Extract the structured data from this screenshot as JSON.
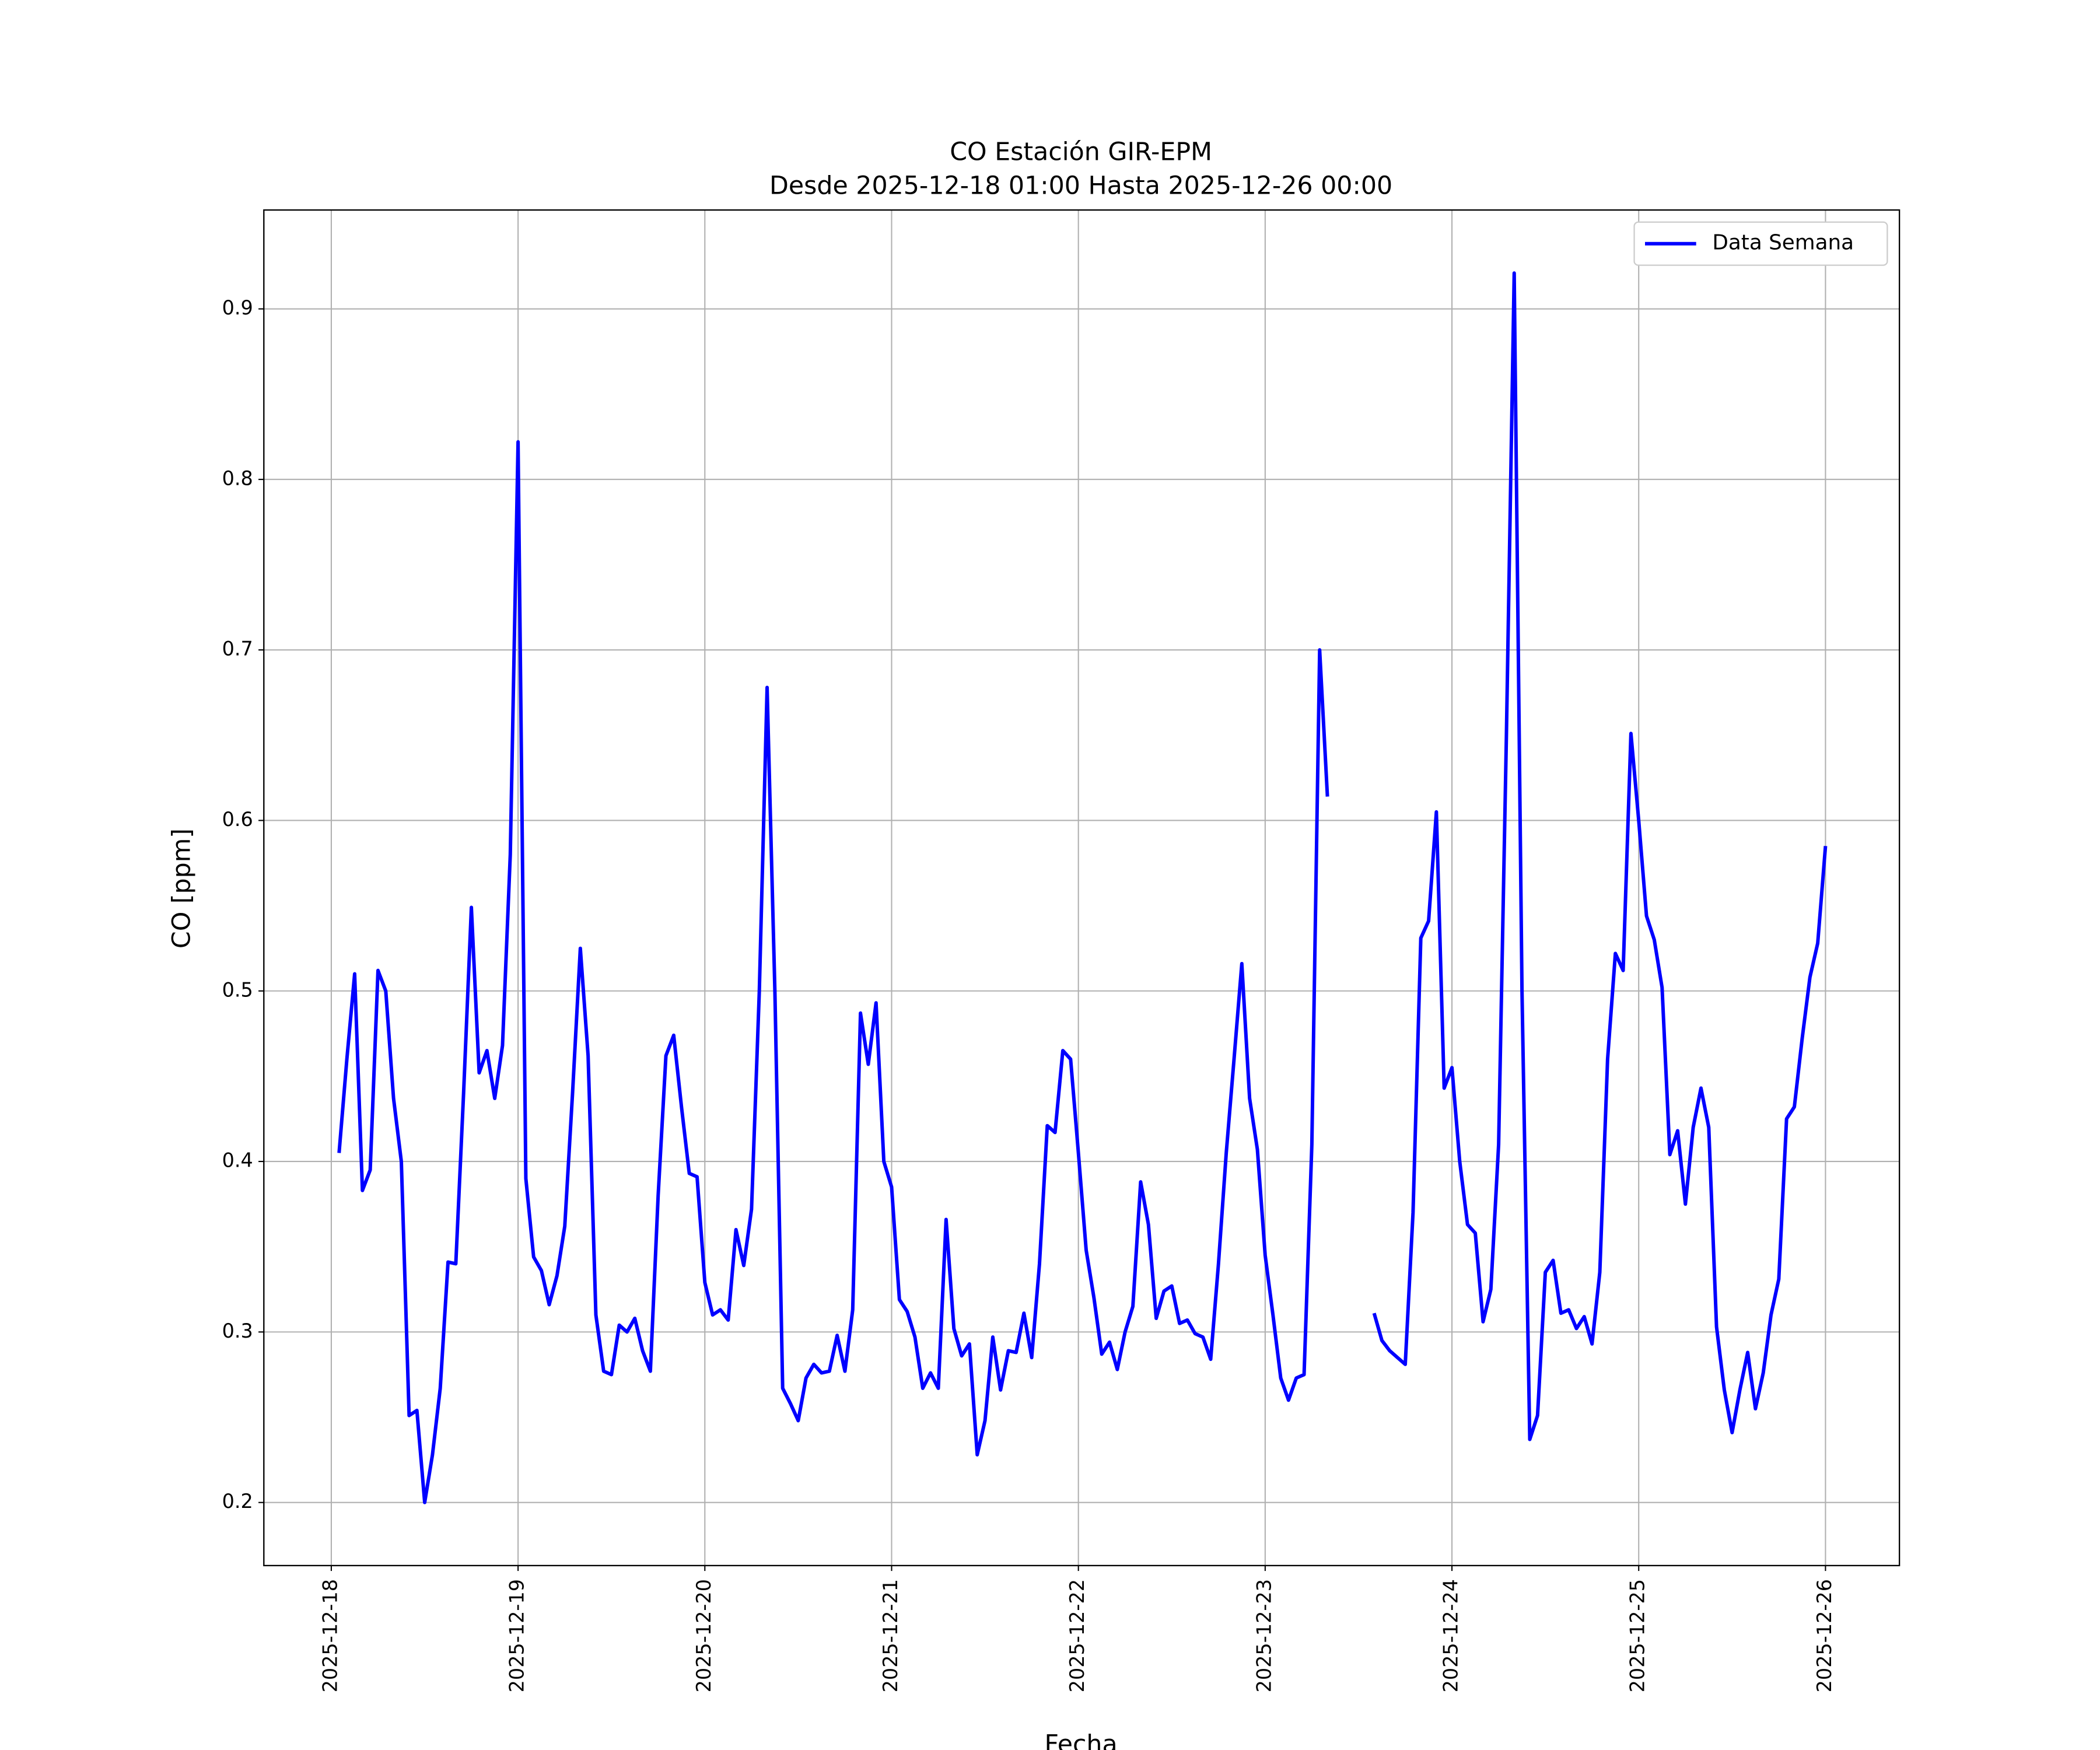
{
  "chart_data": {
    "type": "line",
    "title": "CO Estación GIR-EPM",
    "subtitle": "Desde 2025-12-18 01:00 Hasta 2025-12-26 00:00",
    "x_label": "Fecha",
    "y_label": "CO [ppm]",
    "x": [
      "2025-12-18 01:00",
      "2025-12-18 02:00",
      "2025-12-18 03:00",
      "2025-12-18 04:00",
      "2025-12-18 05:00",
      "2025-12-18 06:00",
      "2025-12-18 07:00",
      "2025-12-18 08:00",
      "2025-12-18 09:00",
      "2025-12-18 10:00",
      "2025-12-18 11:00",
      "2025-12-18 12:00",
      "2025-12-18 13:00",
      "2025-12-18 14:00",
      "2025-12-18 15:00",
      "2025-12-18 16:00",
      "2025-12-18 17:00",
      "2025-12-18 18:00",
      "2025-12-18 19:00",
      "2025-12-18 20:00",
      "2025-12-18 21:00",
      "2025-12-18 22:00",
      "2025-12-18 23:00",
      "2025-12-19 00:00",
      "2025-12-19 01:00",
      "2025-12-19 02:00",
      "2025-12-19 03:00",
      "2025-12-19 04:00",
      "2025-12-19 05:00",
      "2025-12-19 06:00",
      "2025-12-19 07:00",
      "2025-12-19 08:00",
      "2025-12-19 09:00",
      "2025-12-19 10:00",
      "2025-12-19 11:00",
      "2025-12-19 12:00",
      "2025-12-19 13:00",
      "2025-12-19 14:00",
      "2025-12-19 15:00",
      "2025-12-19 16:00",
      "2025-12-19 17:00",
      "2025-12-19 18:00",
      "2025-12-19 19:00",
      "2025-12-19 20:00",
      "2025-12-19 21:00",
      "2025-12-19 22:00",
      "2025-12-19 23:00",
      "2025-12-20 00:00",
      "2025-12-20 01:00",
      "2025-12-20 02:00",
      "2025-12-20 03:00",
      "2025-12-20 04:00",
      "2025-12-20 05:00",
      "2025-12-20 06:00",
      "2025-12-20 07:00",
      "2025-12-20 08:00",
      "2025-12-20 09:00",
      "2025-12-20 10:00",
      "2025-12-20 11:00",
      "2025-12-20 12:00",
      "2025-12-20 13:00",
      "2025-12-20 14:00",
      "2025-12-20 15:00",
      "2025-12-20 16:00",
      "2025-12-20 17:00",
      "2025-12-20 18:00",
      "2025-12-20 19:00",
      "2025-12-20 20:00",
      "2025-12-20 21:00",
      "2025-12-20 22:00",
      "2025-12-20 23:00",
      "2025-12-21 00:00",
      "2025-12-21 01:00",
      "2025-12-21 02:00",
      "2025-12-21 03:00",
      "2025-12-21 04:00",
      "2025-12-21 05:00",
      "2025-12-21 06:00",
      "2025-12-21 07:00",
      "2025-12-21 08:00",
      "2025-12-21 09:00",
      "2025-12-21 10:00",
      "2025-12-21 11:00",
      "2025-12-21 12:00",
      "2025-12-21 13:00",
      "2025-12-21 14:00",
      "2025-12-21 15:00",
      "2025-12-21 16:00",
      "2025-12-21 17:00",
      "2025-12-21 18:00",
      "2025-12-21 19:00",
      "2025-12-21 20:00",
      "2025-12-21 21:00",
      "2025-12-21 22:00",
      "2025-12-21 23:00",
      "2025-12-22 00:00",
      "2025-12-22 01:00",
      "2025-12-22 02:00",
      "2025-12-22 03:00",
      "2025-12-22 04:00",
      "2025-12-22 05:00",
      "2025-12-22 06:00",
      "2025-12-22 07:00",
      "2025-12-22 08:00",
      "2025-12-22 09:00",
      "2025-12-22 10:00",
      "2025-12-22 11:00",
      "2025-12-22 12:00",
      "2025-12-22 13:00",
      "2025-12-22 14:00",
      "2025-12-22 15:00",
      "2025-12-22 16:00",
      "2025-12-22 17:00",
      "2025-12-22 18:00",
      "2025-12-22 19:00",
      "2025-12-22 20:00",
      "2025-12-22 21:00",
      "2025-12-22 22:00",
      "2025-12-22 23:00",
      "2025-12-23 00:00",
      "2025-12-23 01:00",
      "2025-12-23 02:00",
      "2025-12-23 03:00",
      "2025-12-23 04:00",
      "2025-12-23 05:00",
      "2025-12-23 06:00",
      "2025-12-23 07:00",
      "2025-12-23 08:00",
      "2025-12-23 09:00",
      "2025-12-23 10:00",
      "2025-12-23 11:00",
      "2025-12-23 12:00",
      "2025-12-23 13:00",
      "2025-12-23 14:00",
      "2025-12-23 15:00",
      "2025-12-23 16:00",
      "2025-12-23 17:00",
      "2025-12-23 18:00",
      "2025-12-23 19:00",
      "2025-12-23 20:00",
      "2025-12-23 21:00",
      "2025-12-23 22:00",
      "2025-12-23 23:00",
      "2025-12-24 00:00",
      "2025-12-24 01:00",
      "2025-12-24 02:00",
      "2025-12-24 03:00",
      "2025-12-24 04:00",
      "2025-12-24 05:00",
      "2025-12-24 06:00",
      "2025-12-24 07:00",
      "2025-12-24 08:00",
      "2025-12-24 09:00",
      "2025-12-24 10:00",
      "2025-12-24 11:00",
      "2025-12-24 12:00",
      "2025-12-24 13:00",
      "2025-12-24 14:00",
      "2025-12-24 15:00",
      "2025-12-24 16:00",
      "2025-12-24 17:00",
      "2025-12-24 18:00",
      "2025-12-24 19:00",
      "2025-12-24 20:00",
      "2025-12-24 21:00",
      "2025-12-24 22:00",
      "2025-12-24 23:00",
      "2025-12-25 00:00",
      "2025-12-25 01:00",
      "2025-12-25 02:00",
      "2025-12-25 03:00",
      "2025-12-25 04:00",
      "2025-12-25 05:00",
      "2025-12-25 06:00",
      "2025-12-25 07:00",
      "2025-12-25 08:00",
      "2025-12-25 09:00",
      "2025-12-25 10:00",
      "2025-12-25 11:00",
      "2025-12-25 12:00",
      "2025-12-25 13:00",
      "2025-12-25 14:00",
      "2025-12-25 15:00",
      "2025-12-25 16:00",
      "2025-12-25 17:00",
      "2025-12-25 18:00",
      "2025-12-25 19:00",
      "2025-12-25 20:00",
      "2025-12-25 21:00",
      "2025-12-25 22:00",
      "2025-12-25 23:00",
      "2025-12-26 00:00"
    ],
    "series": [
      {
        "name": "Data Semana",
        "color": "#0000ff",
        "values": [
          0.405,
          0.46,
          0.51,
          0.383,
          0.395,
          0.512,
          0.5,
          0.437,
          0.4,
          0.251,
          0.254,
          0.2,
          0.228,
          0.267,
          0.341,
          0.34,
          0.44,
          0.549,
          0.452,
          0.465,
          0.437,
          0.468,
          0.58,
          0.822,
          0.39,
          0.344,
          0.336,
          0.316,
          0.333,
          0.362,
          0.44,
          0.525,
          0.462,
          0.31,
          0.277,
          0.275,
          0.304,
          0.3,
          0.308,
          0.289,
          0.277,
          0.38,
          0.462,
          0.474,
          0.432,
          0.393,
          0.391,
          0.329,
          0.31,
          0.313,
          0.307,
          0.36,
          0.339,
          0.372,
          0.5,
          0.678,
          0.5,
          0.267,
          0.258,
          0.248,
          0.273,
          0.281,
          0.276,
          0.277,
          0.298,
          0.277,
          0.313,
          0.487,
          0.457,
          0.493,
          0.4,
          0.385,
          0.319,
          0.312,
          0.297,
          0.267,
          0.276,
          0.267,
          0.366,
          0.302,
          0.286,
          0.293,
          0.228,
          0.248,
          0.297,
          0.266,
          0.289,
          0.288,
          0.311,
          0.285,
          0.34,
          0.421,
          0.417,
          0.465,
          0.46,
          0.405,
          0.348,
          0.32,
          0.287,
          0.294,
          0.278,
          0.3,
          0.315,
          0.388,
          0.363,
          0.308,
          0.324,
          0.327,
          0.305,
          0.307,
          0.299,
          0.297,
          0.284,
          0.34,
          0.405,
          0.46,
          0.516,
          0.437,
          0.407,
          0.345,
          0.31,
          0.273,
          0.26,
          0.273,
          0.275,
          0.41,
          0.7,
          0.614,
          null,
          null,
          null,
          null,
          null,
          0.311,
          0.295,
          0.289,
          0.285,
          0.281,
          0.37,
          0.531,
          0.541,
          0.605,
          0.443,
          0.455,
          0.4,
          0.363,
          0.358,
          0.306,
          0.325,
          0.41,
          0.65,
          0.921,
          0.5,
          0.237,
          0.251,
          0.335,
          0.342,
          0.311,
          0.313,
          0.302,
          0.309,
          0.293,
          0.335,
          0.46,
          0.522,
          0.512,
          0.651,
          0.6,
          0.544,
          0.53,
          0.502,
          0.404,
          0.418,
          0.375,
          0.42,
          0.443,
          0.42,
          0.303,
          0.266,
          0.241,
          0.266,
          0.288,
          0.255,
          0.276,
          0.31,
          0.331,
          0.425,
          0.432,
          0.472,
          0.508,
          0.528,
          0.585
        ]
      }
    ],
    "xlim": [
      "2025-12-17 15:20",
      "2025-12-26 09:30"
    ],
    "xticks": [
      "2025-12-18",
      "2025-12-19",
      "2025-12-20",
      "2025-12-21",
      "2025-12-22",
      "2025-12-23",
      "2025-12-24",
      "2025-12-25",
      "2025-12-26"
    ],
    "ylim": [
      0.163,
      0.958
    ],
    "yticks": [
      0.2,
      0.3,
      0.4,
      0.5,
      0.6,
      0.7,
      0.8,
      0.9
    ],
    "grid": true,
    "legend": "upper right"
  }
}
